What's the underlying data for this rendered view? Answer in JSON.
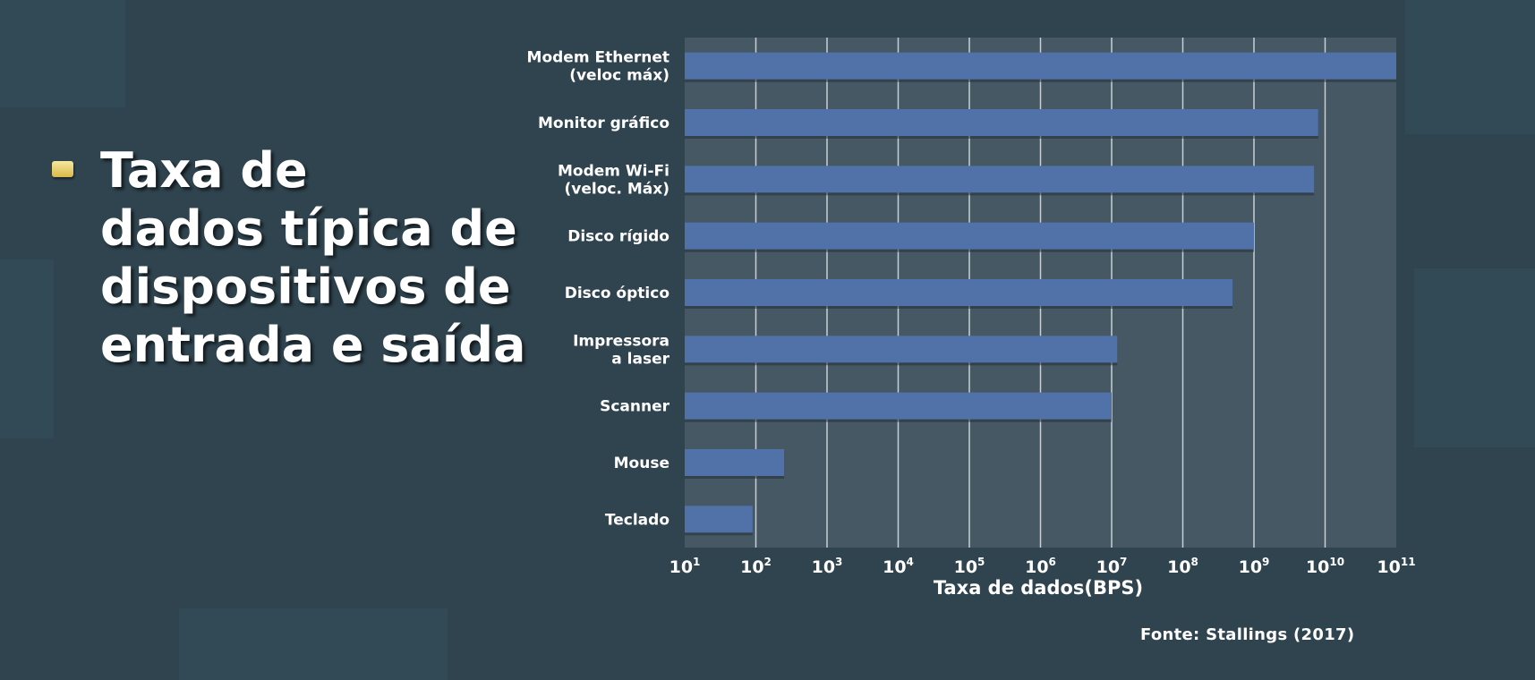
{
  "slide": {
    "title_lines": [
      "Taxa de",
      "dados típica de",
      "dispositivos de",
      "entrada e saída"
    ],
    "source": "Fonte: Stallings (2017)"
  },
  "colors": {
    "background": "#2f444f",
    "plot_area": "#4a5c66",
    "bar": "#5072a8",
    "gridline": "#c8d0d6",
    "bullet": "#e8d27a"
  },
  "chart_data": {
    "type": "bar",
    "orientation": "horizontal",
    "x_scale": "log10",
    "xlabel": "Taxa de dados(BPS)",
    "xlim": [
      10,
      100000000000
    ],
    "x_tick_exponents": [
      1,
      2,
      3,
      4,
      5,
      6,
      7,
      8,
      9,
      10,
      11
    ],
    "grid": true,
    "categories": [
      "Modem Ethernet\n(veloc máx)",
      "Monitor gráfico",
      "Modem Wi-Fi\n(veloc. Máx)",
      "Disco rígido",
      "Disco óptico",
      "Impressora\na laser",
      "Scanner",
      "Mouse",
      "Teclado"
    ],
    "values": [
      100000000000,
      8000000000,
      7000000000,
      1000000000,
      500000000,
      12000000,
      10000000,
      250,
      90
    ]
  }
}
